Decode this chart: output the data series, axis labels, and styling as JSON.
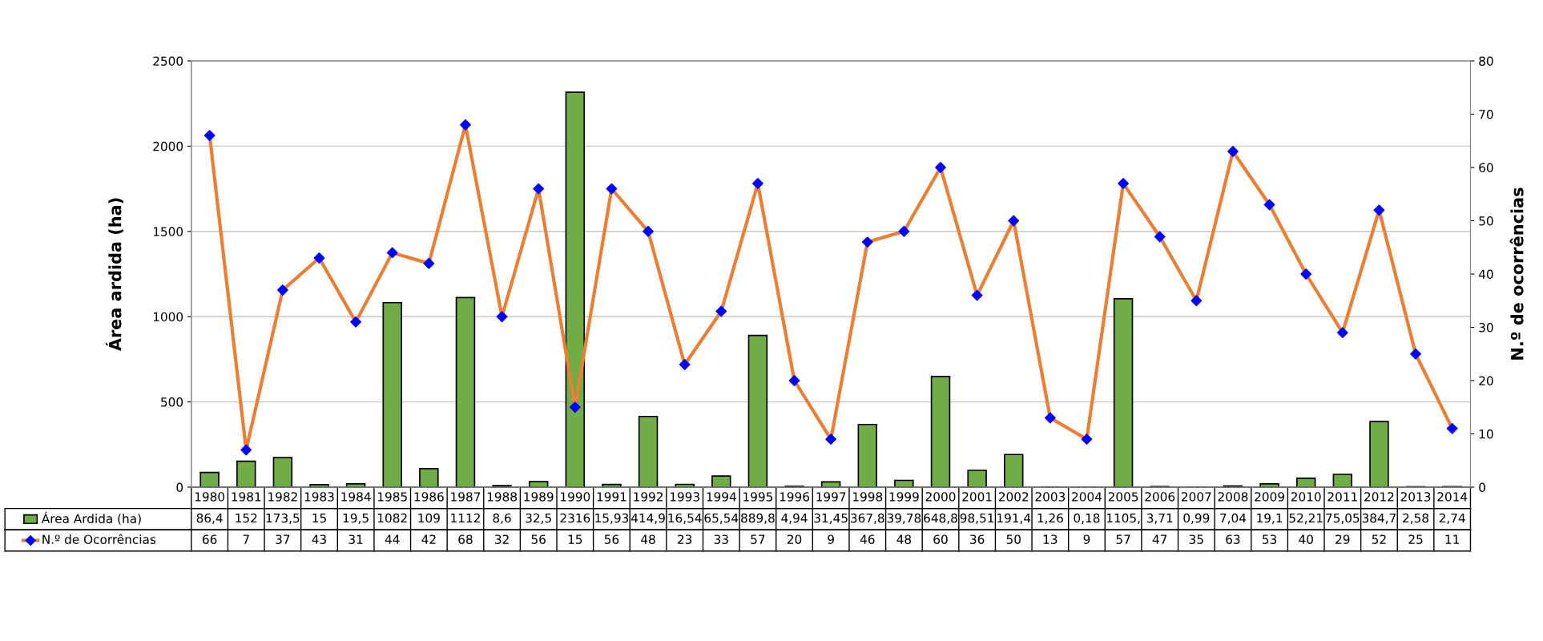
{
  "chart_data": {
    "type": "bar",
    "categories": [
      "1980",
      "1981",
      "1982",
      "1983",
      "1984",
      "1985",
      "1986",
      "1987",
      "1988",
      "1989",
      "1990",
      "1991",
      "1992",
      "1993",
      "1994",
      "1995",
      "1996",
      "1997",
      "1998",
      "1999",
      "2000",
      "2001",
      "2002",
      "2003",
      "2004",
      "2005",
      "2006",
      "2007",
      "2008",
      "2009",
      "2010",
      "2011",
      "2012",
      "2013",
      "2014"
    ],
    "ylabel": "Área ardida (ha)",
    "y2label": "N.º de ocorrências",
    "ylim": [
      0,
      2500
    ],
    "yticks": [
      0,
      500,
      1000,
      1500,
      2000,
      2500
    ],
    "y2lim": [
      0,
      80
    ],
    "y2ticks": [
      0,
      10,
      20,
      30,
      40,
      50,
      60,
      70,
      80
    ],
    "grid": "y",
    "legend": "bottom",
    "series": [
      {
        "name": "Área Ardida (ha)",
        "color": "#70ad47",
        "values": [
          86.4,
          152,
          173.5,
          15,
          19.5,
          1082,
          109,
          1112,
          8.6,
          32.5,
          2316,
          15.93,
          414.9,
          16.54,
          65.54,
          889.8,
          4.94,
          31.45,
          367.8,
          39.78,
          648.8,
          98.51,
          191.4,
          1.26,
          0.18,
          1105,
          3.71,
          0.99,
          7.04,
          19.1,
          52.21,
          75.05,
          384.7,
          2.58,
          2.74
        ],
        "value_labels": [
          "86,4",
          "152",
          "173,5",
          "15",
          "19,5",
          "1082",
          "109",
          "1112",
          "8,6",
          "32,5",
          "2316",
          "15,93",
          "414,9",
          "16,54",
          "65,54",
          "889,8",
          "4,94",
          "31,45",
          "367,8",
          "39,78",
          "648,8",
          "98,51",
          "191,4",
          "1,26",
          "0,18",
          "1105,",
          "3,71",
          "0,99",
          "7,04",
          "19,1",
          "52,21",
          "75,05",
          "384,7",
          "2,58",
          "2,74"
        ]
      },
      {
        "name": "N.º de Ocorrências",
        "type": "line",
        "axis": "y2",
        "color": "#ed7d31",
        "marker": "diamond",
        "colors": [
          "#0000ff",
          "#0000ff",
          "#0000ff",
          "#0000ff",
          "#0000ff",
          "#0000ff",
          "#0000ff",
          "#0000ff",
          "#0000ff",
          "#0000ff",
          "#0000ff",
          "#0000ff",
          "#0000ff",
          "#0000ff",
          "#0000ff",
          "#0000ff",
          "#0000ff",
          "#0000ff",
          "#0000ff",
          "#0000ff",
          "#0000ff",
          "#0000ff",
          "#0000ff",
          "#0000ff",
          "#0000ff",
          "#0000ff",
          "#0000ff",
          "#0000ff",
          "#0000ff",
          "#0000ff",
          "#0000ff",
          "#0000ff",
          "#0000ff",
          "#0000ff",
          "#0000ff"
        ],
        "values": [
          66,
          7,
          37,
          43,
          31,
          44,
          42,
          68,
          32,
          56,
          15,
          56,
          48,
          23,
          33,
          57,
          20,
          9,
          46,
          48,
          60,
          36,
          50,
          13,
          9,
          57,
          47,
          35,
          63,
          53,
          40,
          29,
          52,
          25,
          11
        ],
        "value_labels": [
          "66",
          "7",
          "37",
          "43",
          "31",
          "44",
          "42",
          "68",
          "32",
          "56",
          "15",
          "56",
          "48",
          "23",
          "33",
          "57",
          "20",
          "9",
          "46",
          "48",
          "60",
          "36",
          "50",
          "13",
          "9",
          "57",
          "47",
          "35",
          "63",
          "53",
          "40",
          "29",
          "52",
          "25",
          "11"
        ]
      }
    ]
  }
}
